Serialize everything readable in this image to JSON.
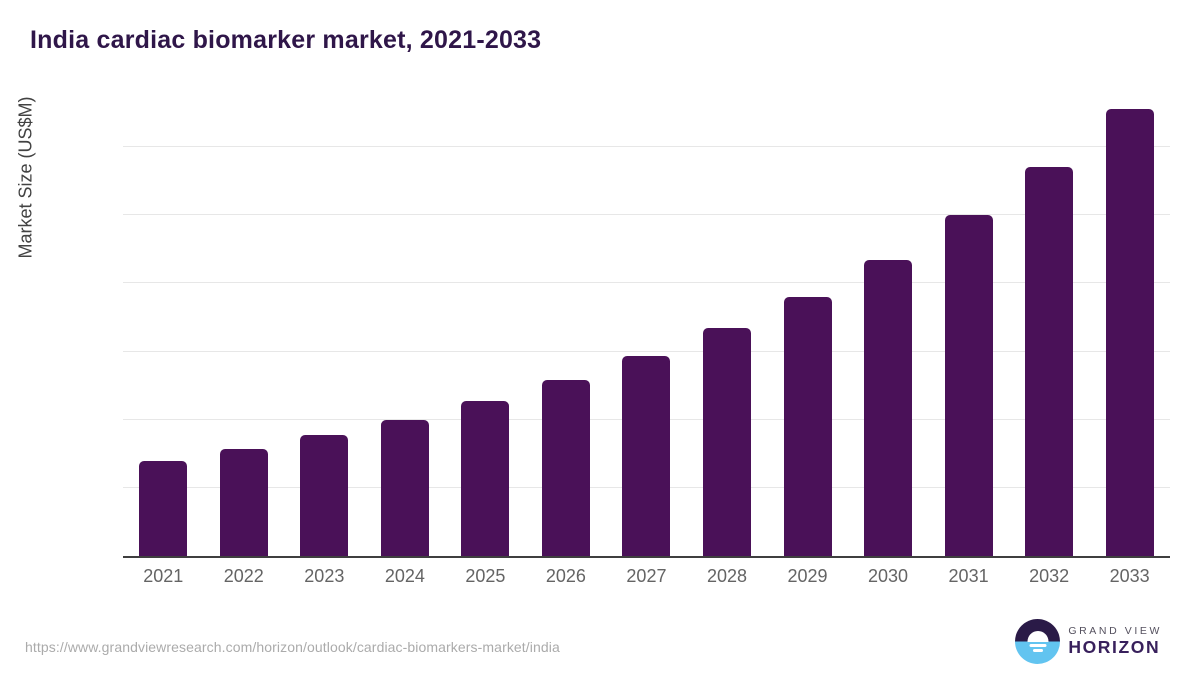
{
  "title": "India cardiac biomarker market, 2021-2033",
  "chart_data": {
    "type": "bar",
    "title": "India cardiac biomarker market, 2021-2033",
    "categories": [
      "2021",
      "2022",
      "2023",
      "2024",
      "2025",
      "2026",
      "2027",
      "2028",
      "2029",
      "2030",
      "2031",
      "2032",
      "2033"
    ],
    "values": [
      700,
      785,
      885,
      1000,
      1140,
      1290,
      1465,
      1670,
      1900,
      2175,
      2500,
      2855,
      3280
    ],
    "xlabel": "",
    "ylabel": "Market Size (US$M)",
    "ylim": [
      0,
      3360
    ],
    "yticks": [
      0,
      500,
      1000,
      1500,
      2000,
      2500,
      3000
    ],
    "grid": true,
    "legend": "none",
    "bar_color": "#4A1158"
  },
  "footer": {
    "source_url": "https://www.grandviewresearch.com/horizon/outlook/cardiac-biomarkers-market/india"
  },
  "logo": {
    "brand_top": "GRAND VIEW",
    "brand_bottom": "HORIZON"
  },
  "colors": {
    "bar": "#4A1158",
    "title_text": "#2F1649",
    "tick_text": "#757575",
    "xlabel_text": "#646464",
    "axis_line": "#3f3f3f",
    "gridline": "#e7e7e7",
    "source_text": "#ababab",
    "logo_navy": "#2A1A47",
    "logo_blue": "#62C4F0",
    "logo_horizon_text": "#38205C",
    "logo_grandview_text": "#54505E"
  }
}
